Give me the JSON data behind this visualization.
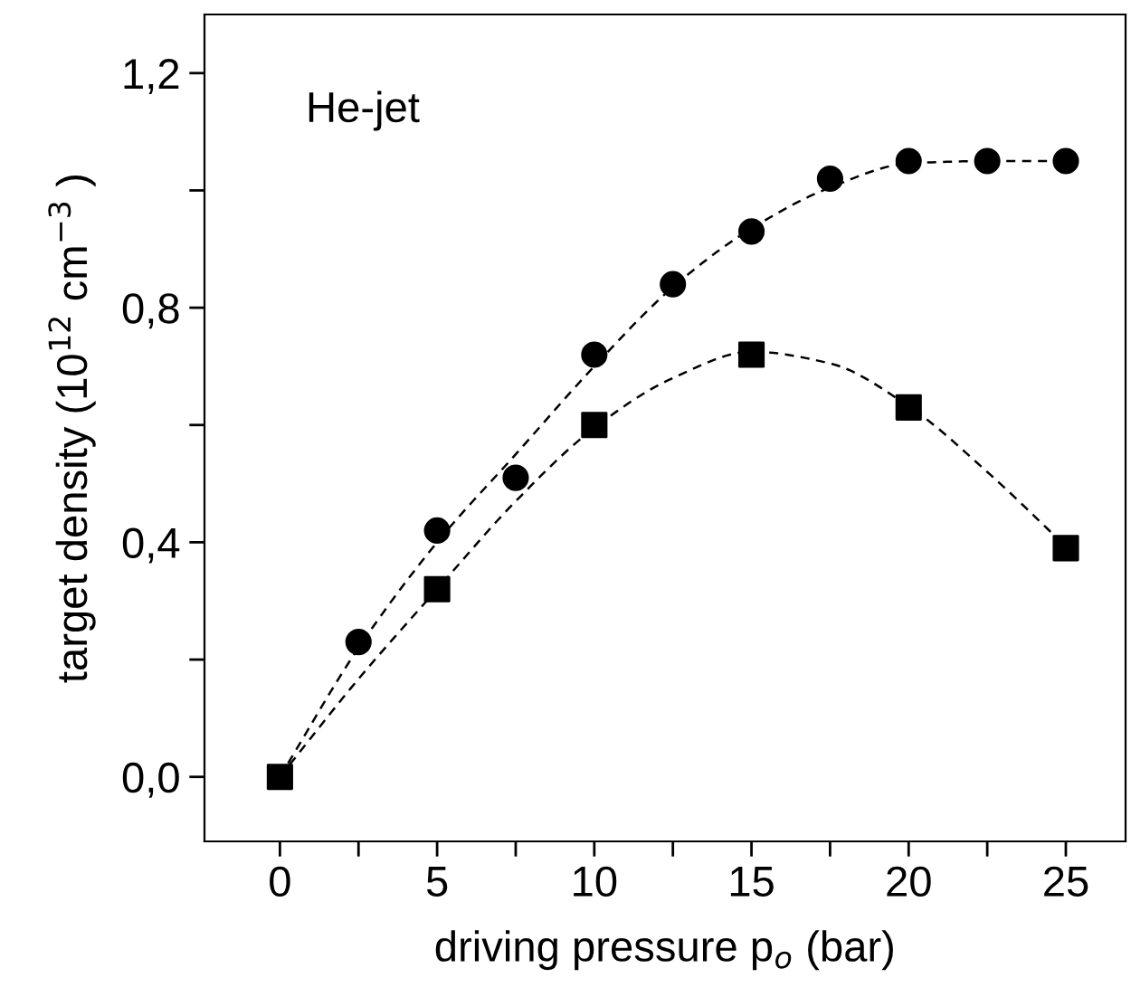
{
  "chart_data": {
    "type": "scatter",
    "xlabel": "driving pressure p$_{o}$ (bar)",
    "ylabel": "target density (10$^{12}$ cm$^{−3}$ )",
    "annotations": [
      "He-jet"
    ],
    "series": [
      {
        "type": "line",
        "color": "#000000",
        "line_style": "dashed",
        "x": [
          0,
          2.5,
          5,
          7.5,
          10,
          12.5,
          15,
          17.5,
          20,
          22.5,
          25
        ],
        "values": [
          0,
          0.22,
          0.4,
          0.55,
          0.7,
          0.835,
          0.935,
          1.005,
          1.046,
          1.05,
          1.05
        ]
      },
      {
        "type": "line",
        "color": "#000000",
        "line_style": "dashed",
        "x": [
          0,
          2.5,
          5,
          7.5,
          10,
          12.5,
          15,
          17.5,
          20,
          22.5,
          25
        ],
        "values": [
          0,
          0.167,
          0.32,
          0.47,
          0.595,
          0.68,
          0.725,
          0.705,
          0.632,
          0.52,
          0.393
        ]
      },
      {
        "color": "#000000",
        "marker": "circle",
        "x": [
          2.5,
          5,
          7.5,
          10,
          12.5,
          15,
          17.5,
          20,
          22.5,
          25
        ],
        "values": [
          0.23,
          0.42,
          0.51,
          0.72,
          0.84,
          0.93,
          1.02,
          1.05,
          1.05,
          1.05
        ]
      },
      {
        "color": "#000000",
        "marker": "square",
        "x": [
          0,
          5,
          10,
          15,
          20,
          25
        ],
        "values": [
          0,
          0.32,
          0.6,
          0.72,
          0.63,
          0.39
        ]
      }
    ],
    "xlim": [
      -2.4,
      26.9
    ],
    "ylim": [
      -0.11,
      1.3
    ],
    "xticks": [
      0,
      {
        "value": 2.5,
        "label": null
      },
      5,
      {
        "value": 7.5,
        "label": null
      },
      10,
      {
        "value": 12.5,
        "label": null
      },
      15,
      {
        "value": 17.5,
        "label": null
      },
      20,
      {
        "value": 22.5,
        "label": null
      },
      25
    ],
    "yticks": [
      {
        "value": 0,
        "label": "0,0"
      },
      {
        "value": 0.2,
        "label": null
      },
      {
        "value": 0.4,
        "label": "0,4"
      },
      {
        "value": 0.6,
        "label": null
      },
      {
        "value": 0.8,
        "label": "0,8"
      },
      {
        "value": 1.0,
        "label": null
      },
      {
        "value": 1.2,
        "label": "1,2"
      }
    ],
    "grid": false,
    "legend": false
  }
}
